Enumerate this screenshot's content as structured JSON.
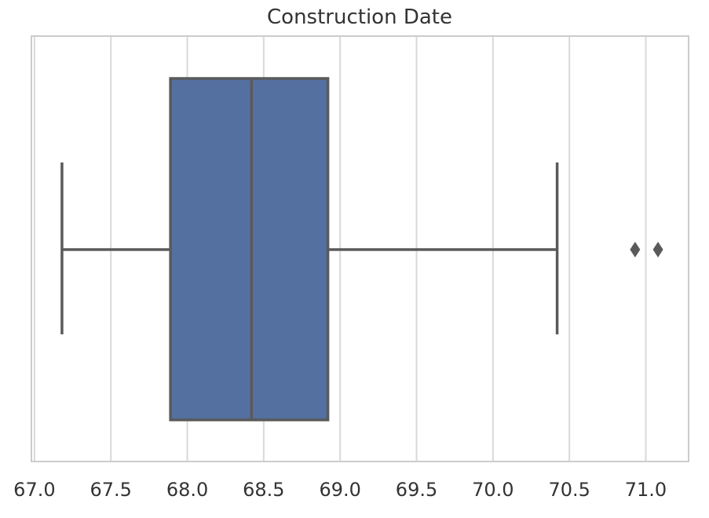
{
  "chart_data": {
    "type": "box",
    "orientation": "horizontal",
    "title": "Construction Date",
    "xlabel": "",
    "ylabel": "",
    "xlim": [
      66.98,
      71.28
    ],
    "xticks": [
      "67.0",
      "67.5",
      "68.0",
      "68.5",
      "69.0",
      "69.5",
      "70.0",
      "70.5",
      "71.0"
    ],
    "grid": "vertical",
    "box": {
      "whisker_low": 67.18,
      "q1": 67.89,
      "median": 68.42,
      "q3": 68.92,
      "whisker_high": 70.42
    },
    "outliers": [
      70.93,
      71.08
    ],
    "colors": {
      "box_fill": "#5470a0",
      "line": "#5a5a5a",
      "grid": "#d9d9d9",
      "frame": "#cccccc",
      "text": "#333333"
    }
  }
}
